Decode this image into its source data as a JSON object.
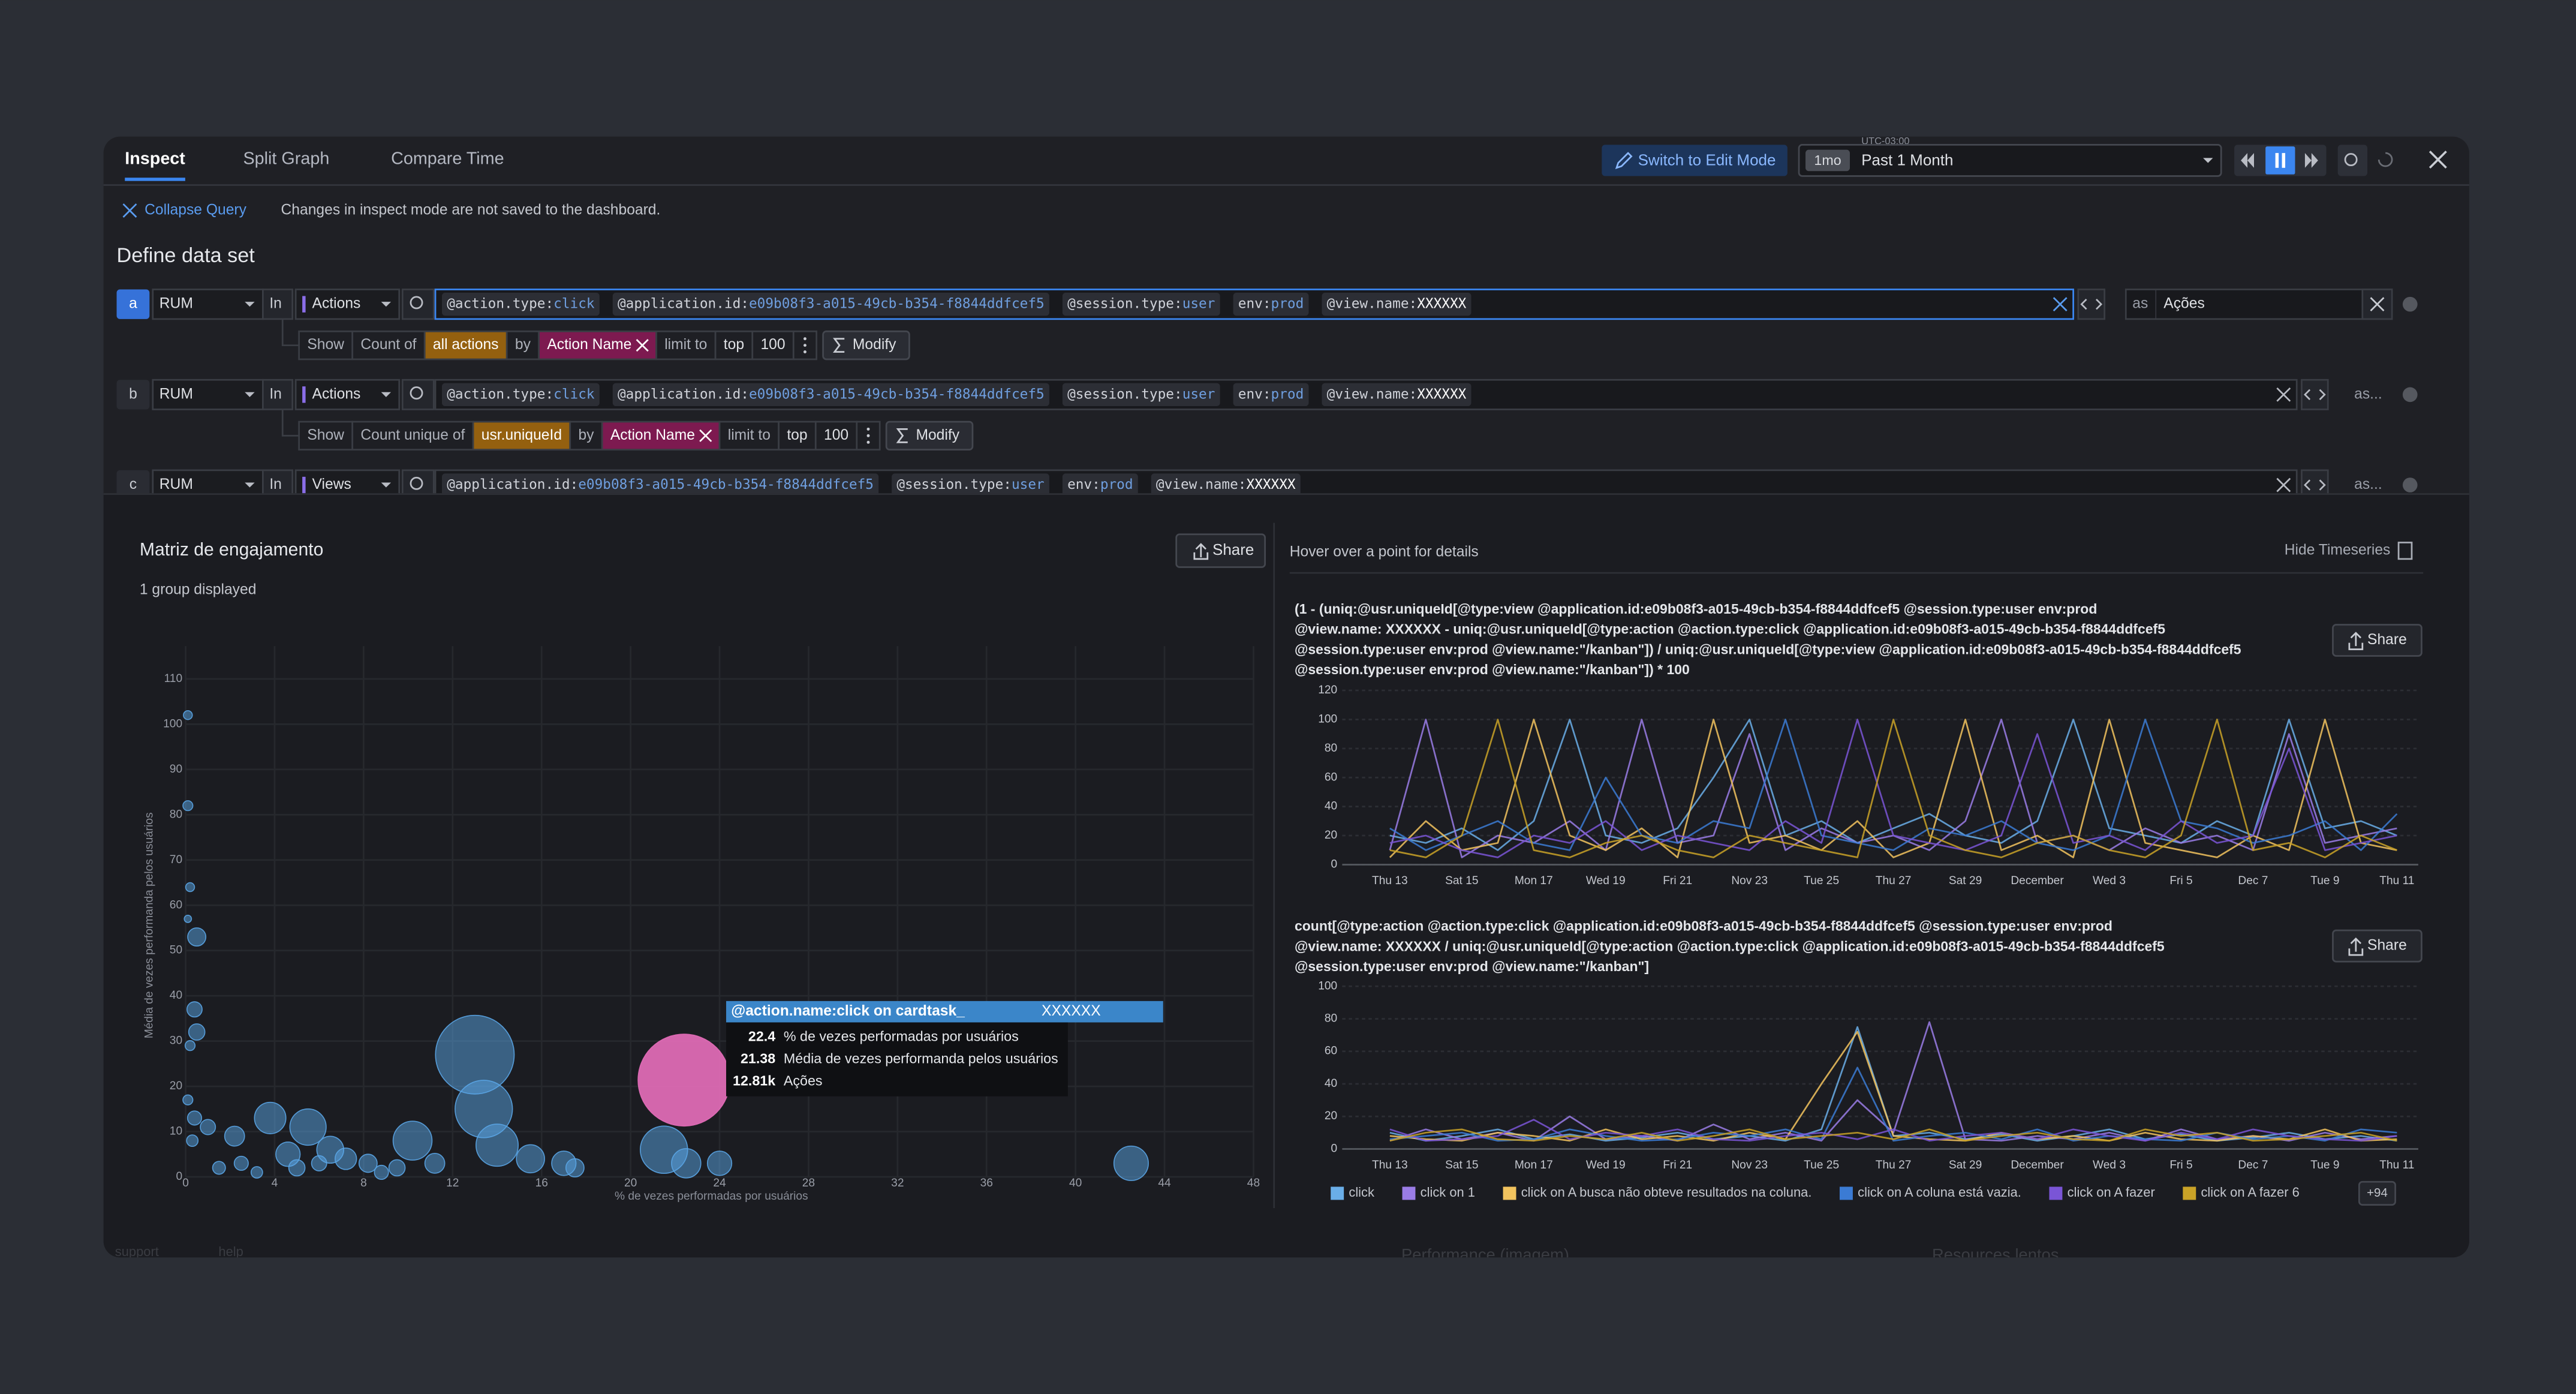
{
  "header": {
    "tabs": [
      "Inspect",
      "Split Graph",
      "Compare Time"
    ],
    "active_tab": 0,
    "edit_button": "Switch to Edit Mode",
    "timezone": "UTC-03:00",
    "range_badge": "1mo",
    "range": "Past 1 Month"
  },
  "query_bar": {
    "collapse": "Collapse Query",
    "note": "Changes in inspect mode are not saved to the dashboard.",
    "title": "Define data set"
  },
  "queries": [
    {
      "letter": "a",
      "source": "RUM",
      "in": "In",
      "type": "Actions",
      "filters": [
        {
          "key": "@action.type:",
          "value": "click"
        },
        {
          "key": "@application.id:",
          "value": "e09b08f3-a015-49cb-b354-f8844ddfcef5"
        },
        {
          "key": "@session.type:",
          "value": "user"
        },
        {
          "key": "env:",
          "value": "prod"
        },
        {
          "key": "@view.name:",
          "value": "XXXXXX"
        }
      ],
      "alias_label": "as",
      "alias": "Ações",
      "aggregate": {
        "show": "Show",
        "measure": "Count of",
        "target": "all actions",
        "by": "by",
        "group": "Action Name",
        "limit": "limit to",
        "order": "top",
        "count": "100",
        "modify": "Modify"
      }
    },
    {
      "letter": "b",
      "source": "RUM",
      "in": "In",
      "type": "Actions",
      "filters": [
        {
          "key": "@action.type:",
          "value": "click"
        },
        {
          "key": "@application.id:",
          "value": "e09b08f3-a015-49cb-b354-f8844ddfcef5"
        },
        {
          "key": "@session.type:",
          "value": "user"
        },
        {
          "key": "env:",
          "value": "prod"
        },
        {
          "key": "@view.name:",
          "value": "XXXXXX"
        }
      ],
      "alias": "as...",
      "aggregate": {
        "show": "Show",
        "measure": "Count unique of",
        "target": "usr.uniqueId",
        "by": "by",
        "group": "Action Name",
        "limit": "limit to",
        "order": "top",
        "count": "100",
        "modify": "Modify"
      }
    },
    {
      "letter": "c",
      "source": "RUM",
      "in": "In",
      "type": "Views",
      "filters": [
        {
          "key": "@application.id:",
          "value": "e09b08f3-a015-49cb-b354-f8844ddfcef5"
        },
        {
          "key": "@session.type:",
          "value": "user"
        },
        {
          "key": "env:",
          "value": "prod"
        },
        {
          "key": "@view.name:",
          "value": "XXXXXX"
        }
      ],
      "alias": "as..."
    }
  ],
  "scatter": {
    "type": "scatter",
    "title": "Matriz de engajamento",
    "subtitle": "1 group displayed",
    "share": "Share",
    "xlabel": "% de vezes performadas por usuários",
    "ylabel": "Média de vezes performanda pelos usuários",
    "xlim": [
      0,
      48
    ],
    "ylim": [
      0,
      110
    ],
    "xticks": [
      0,
      4,
      8,
      12,
      16,
      20,
      24,
      28,
      32,
      36,
      40,
      44,
      48
    ],
    "yticks": [
      0,
      10,
      20,
      30,
      40,
      50,
      60,
      70,
      80,
      90,
      100,
      110
    ],
    "grid": true,
    "color": "#5aa5e6",
    "highlight_color": "#e36cb8",
    "hovered_point": 38,
    "points": [
      {
        "x": 0.1,
        "y": 102,
        "size": 120
      },
      {
        "x": 0.1,
        "y": 82,
        "size": 150
      },
      {
        "x": 0.2,
        "y": 64,
        "size": 120
      },
      {
        "x": 0.5,
        "y": 53,
        "size": 500
      },
      {
        "x": 0.1,
        "y": 57,
        "size": 80
      },
      {
        "x": 0.4,
        "y": 37,
        "size": 350
      },
      {
        "x": 0.5,
        "y": 32,
        "size": 400
      },
      {
        "x": 0.2,
        "y": 29,
        "size": 150
      },
      {
        "x": 0.1,
        "y": 17,
        "size": 150
      },
      {
        "x": 0.4,
        "y": 13,
        "size": 300
      },
      {
        "x": 0.3,
        "y": 8,
        "size": 200
      },
      {
        "x": 1,
        "y": 11,
        "size": 350
      },
      {
        "x": 2.2,
        "y": 9,
        "size": 600
      },
      {
        "x": 3.8,
        "y": 13,
        "size": 1500
      },
      {
        "x": 5.5,
        "y": 11,
        "size": 2000
      },
      {
        "x": 4.6,
        "y": 5,
        "size": 900
      },
      {
        "x": 6.5,
        "y": 6,
        "size": 1100
      },
      {
        "x": 7.2,
        "y": 4,
        "size": 700
      },
      {
        "x": 8.2,
        "y": 3,
        "size": 500
      },
      {
        "x": 10.2,
        "y": 8,
        "size": 2300
      },
      {
        "x": 11.2,
        "y": 3,
        "size": 600
      },
      {
        "x": 13,
        "y": 27,
        "size": 9400
      },
      {
        "x": 13.4,
        "y": 15,
        "size": 5000
      },
      {
        "x": 14,
        "y": 7,
        "size": 2700
      },
      {
        "x": 15.5,
        "y": 4,
        "size": 1200
      },
      {
        "x": 17,
        "y": 3,
        "size": 900
      },
      {
        "x": 17.5,
        "y": 2,
        "size": 500
      },
      {
        "x": 21.5,
        "y": 6,
        "size": 3400
      },
      {
        "x": 22.5,
        "y": 3,
        "size": 1300
      },
      {
        "x": 24,
        "y": 3,
        "size": 900
      },
      {
        "x": 42.5,
        "y": 3,
        "size": 1800
      },
      {
        "x": 1.5,
        "y": 2,
        "size": 250
      },
      {
        "x": 2.5,
        "y": 3,
        "size": 300
      },
      {
        "x": 3.2,
        "y": 1,
        "size": 200
      },
      {
        "x": 5,
        "y": 2,
        "size": 400
      },
      {
        "x": 6,
        "y": 3,
        "size": 350
      },
      {
        "x": 8.8,
        "y": 1,
        "size": 300
      },
      {
        "x": 9.5,
        "y": 2,
        "size": 400
      },
      {
        "x": 22.4,
        "y": 21.38,
        "size": 12810
      }
    ],
    "tooltip": {
      "title": "@action.name:click on cardtask_",
      "name": "XXXXXX",
      "rows": [
        {
          "value": "22.4",
          "label": "% de vezes performadas por usuários"
        },
        {
          "value": "21.38",
          "label": "Média de vezes performanda pelos usuários"
        },
        {
          "value": "12.81k",
          "label": "Ações"
        }
      ]
    }
  },
  "timeseries": {
    "hint": "Hover over a point for details",
    "hide": "Hide Timeseries",
    "categories": [
      "Thu 13",
      null,
      "Sat 15",
      null,
      "Mon 17",
      null,
      "Wed 19",
      null,
      "Fri 21",
      null,
      "Nov 23",
      null,
      "Tue 25",
      null,
      "Thu 27",
      null,
      "Sat 29",
      null,
      "December",
      null,
      "Wed 3",
      null,
      "Fri 5",
      null,
      "Dec 7",
      null,
      "Tue 9",
      null,
      "Thu 11"
    ],
    "legend": [
      {
        "name": "click",
        "color": "#6aaee8"
      },
      {
        "name": "click on 1",
        "color": "#9a7ce6"
      },
      {
        "name": "click on A busca não obteve resultados na coluna.",
        "color": "#f2c35e"
      },
      {
        "name": "click on A coluna está vazia.",
        "color": "#3b7bd4"
      },
      {
        "name": "click on A fazer",
        "color": "#7a55d6"
      },
      {
        "name": "click on A fazer 6",
        "color": "#c9a227"
      }
    ],
    "more": "+94",
    "charts": [
      {
        "formula": [
          "(1 - (uniq:@usr.uniqueId[@type:view @application.id:e09b08f3-a015-49cb-b354-f8844ddfcef5 @session.type:user env:prod",
          "@view.name: XXXXXX - uniq:@usr.uniqueId[@type:action @action.type:click @application.id:e09b08f3-a015-49cb-b354-f8844ddfcef5",
          "@session.type:user env:prod @view.name:\"/kanban\"]) / uniq:@usr.uniqueId[@type:view @application.id:e09b08f3-a015-49cb-b354-f8844ddfcef5",
          "@session.type:user env:prod @view.name:\"/kanban\"]) * 100"
        ],
        "share": "Share",
        "ylim": [
          0,
          120
        ],
        "yticks": [
          0,
          20,
          40,
          60,
          80,
          100,
          120
        ],
        "series": [
          [
            20,
            15,
            25,
            10,
            30,
            100,
            20,
            15,
            25,
            60,
            100,
            20,
            30,
            15,
            25,
            35,
            20,
            15,
            30,
            100,
            25,
            20,
            15,
            30,
            20,
            100,
            25,
            30,
            20
          ],
          [
            10,
            100,
            5,
            20,
            15,
            30,
            10,
            100,
            15,
            20,
            90,
            10,
            25,
            15,
            20,
            10,
            30,
            100,
            15,
            20,
            10,
            25,
            15,
            20,
            10,
            90,
            15,
            20,
            25
          ],
          [
            5,
            30,
            10,
            15,
            100,
            20,
            10,
            25,
            5,
            100,
            15,
            20,
            10,
            30,
            5,
            15,
            100,
            10,
            20,
            5,
            100,
            15,
            10,
            5,
            20,
            10,
            100,
            15,
            10
          ],
          [
            25,
            10,
            20,
            30,
            15,
            10,
            60,
            20,
            15,
            30,
            25,
            100,
            20,
            15,
            10,
            25,
            20,
            30,
            15,
            10,
            20,
            100,
            30,
            25,
            15,
            20,
            30,
            10,
            35
          ],
          [
            15,
            20,
            10,
            5,
            20,
            15,
            30,
            10,
            20,
            15,
            10,
            30,
            15,
            100,
            20,
            15,
            10,
            20,
            90,
            15,
            20,
            10,
            30,
            15,
            20,
            80,
            10,
            15,
            20
          ],
          [
            10,
            5,
            20,
            100,
            10,
            5,
            15,
            20,
            10,
            5,
            20,
            15,
            10,
            5,
            100,
            20,
            10,
            5,
            15,
            20,
            10,
            5,
            20,
            100,
            10,
            15,
            5,
            20,
            10
          ]
        ]
      },
      {
        "formula": [
          "count[@type:action @action.type:click @application.id:e09b08f3-a015-49cb-b354-f8844ddfcef5 @session.type:user env:prod",
          "@view.name: XXXXXX / uniq:@usr.uniqueId[@type:action @action.type:click @application.id:e09b08f3-a015-49cb-b354-f8844ddfcef5",
          "@session.type:user env:prod @view.name:\"/kanban\"]"
        ],
        "share": "Share",
        "ylim": [
          0,
          100
        ],
        "yticks": [
          0,
          20,
          40,
          60,
          80,
          100
        ],
        "series": [
          [
            10,
            5,
            8,
            12,
            6,
            9,
            5,
            7,
            10,
            6,
            8,
            5,
            12,
            75,
            8,
            10,
            6,
            9,
            5,
            8,
            12,
            6,
            9,
            5,
            7,
            10,
            6,
            8,
            5
          ],
          [
            5,
            12,
            6,
            10,
            5,
            20,
            6,
            8,
            5,
            15,
            6,
            10,
            5,
            30,
            10,
            78,
            6,
            5,
            8,
            6,
            10,
            5,
            12,
            6,
            8,
            5,
            10,
            6,
            8
          ],
          [
            8,
            6,
            5,
            10,
            8,
            5,
            12,
            6,
            8,
            5,
            10,
            6,
            40,
            72,
            8,
            6,
            5,
            10,
            6,
            8,
            5,
            10,
            6,
            5,
            8,
            6,
            12,
            5,
            6
          ],
          [
            6,
            8,
            10,
            5,
            6,
            12,
            8,
            5,
            6,
            10,
            8,
            12,
            6,
            50,
            5,
            8,
            10,
            6,
            12,
            5,
            8,
            6,
            5,
            10,
            6,
            8,
            5,
            12,
            10
          ],
          [
            12,
            5,
            6,
            8,
            18,
            6,
            10,
            8,
            12,
            6,
            5,
            8,
            10,
            6,
            12,
            5,
            8,
            10,
            6,
            12,
            8,
            5,
            10,
            6,
            12,
            8,
            6,
            5,
            8
          ],
          [
            5,
            10,
            12,
            6,
            5,
            8,
            6,
            10,
            5,
            8,
            12,
            6,
            8,
            10,
            6,
            12,
            5,
            8,
            10,
            6,
            5,
            12,
            8,
            10,
            5,
            6,
            8,
            10,
            5
          ]
        ]
      }
    ]
  },
  "background_labels": [
    "support",
    "help",
    "Performance (imagem)",
    "Resources lentos"
  ]
}
